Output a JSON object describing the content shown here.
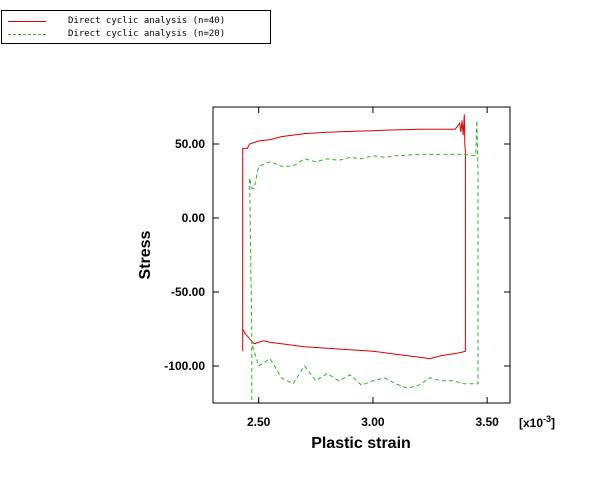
{
  "chart_data": {
    "type": "line",
    "title": "",
    "xlabel": "Plastic strain",
    "ylabel": "Stress",
    "x_multiplier_label": "[x10",
    "x_multiplier_exp": "-3",
    "x_multiplier_close": "]",
    "xlim": [
      2.3,
      3.6
    ],
    "ylim": [
      -125,
      75
    ],
    "xticks": [
      2.5,
      3.0,
      3.5
    ],
    "xtick_labels": [
      "2.50",
      "3.00",
      "3.50"
    ],
    "yticks": [
      50,
      0,
      -50,
      -100
    ],
    "ytick_labels": [
      "50.00",
      "0.00",
      "-50.00",
      "-100.00"
    ],
    "grid": false,
    "legend_position": "top-left-outside",
    "series": [
      {
        "name": "Direct cyclic analysis (n=40)",
        "color": "#dd0000",
        "dash": "solid",
        "points": [
          [
            2.43,
            -90
          ],
          [
            2.43,
            47
          ],
          [
            2.45,
            47
          ],
          [
            2.46,
            50
          ],
          [
            2.5,
            52
          ],
          [
            2.55,
            53
          ],
          [
            2.6,
            55
          ],
          [
            2.65,
            56
          ],
          [
            2.7,
            57
          ],
          [
            2.8,
            58
          ],
          [
            2.9,
            58.5
          ],
          [
            3.0,
            59
          ],
          [
            3.1,
            59.5
          ],
          [
            3.2,
            60
          ],
          [
            3.3,
            60
          ],
          [
            3.36,
            60
          ],
          [
            3.38,
            64
          ],
          [
            3.385,
            58
          ],
          [
            3.39,
            66
          ],
          [
            3.395,
            56
          ],
          [
            3.4,
            70
          ],
          [
            3.402,
            50
          ],
          [
            3.405,
            45
          ],
          [
            3.405,
            -90
          ],
          [
            3.38,
            -91
          ],
          [
            3.3,
            -93
          ],
          [
            3.25,
            -95
          ],
          [
            3.2,
            -94
          ],
          [
            3.1,
            -92
          ],
          [
            3.0,
            -90
          ],
          [
            2.9,
            -89
          ],
          [
            2.8,
            -88
          ],
          [
            2.7,
            -87
          ],
          [
            2.6,
            -85
          ],
          [
            2.55,
            -84
          ],
          [
            2.52,
            -83
          ],
          [
            2.48,
            -85
          ],
          [
            2.44,
            -78
          ],
          [
            2.43,
            -75
          ]
        ]
      },
      {
        "name": "Direct cyclic analysis (n=20)",
        "color": "#22bb22",
        "dash": "dashed",
        "points": [
          [
            2.47,
            -123
          ],
          [
            2.47,
            -80
          ],
          [
            2.46,
            27
          ],
          [
            2.47,
            20
          ],
          [
            2.48,
            20
          ],
          [
            2.5,
            35
          ],
          [
            2.55,
            38
          ],
          [
            2.6,
            35
          ],
          [
            2.65,
            35
          ],
          [
            2.7,
            40
          ],
          [
            2.75,
            38
          ],
          [
            2.8,
            40
          ],
          [
            2.85,
            39
          ],
          [
            2.9,
            41
          ],
          [
            2.95,
            40
          ],
          [
            3.0,
            42
          ],
          [
            3.05,
            41
          ],
          [
            3.1,
            42
          ],
          [
            3.2,
            43
          ],
          [
            3.3,
            43
          ],
          [
            3.4,
            43
          ],
          [
            3.45,
            42
          ],
          [
            3.455,
            66
          ],
          [
            3.46,
            30
          ],
          [
            3.46,
            -112
          ],
          [
            3.4,
            -112
          ],
          [
            3.35,
            -110
          ],
          [
            3.3,
            -110
          ],
          [
            3.25,
            -108
          ],
          [
            3.2,
            -113
          ],
          [
            3.15,
            -115
          ],
          [
            3.1,
            -112
          ],
          [
            3.05,
            -108
          ],
          [
            3.0,
            -110
          ],
          [
            2.95,
            -113
          ],
          [
            2.9,
            -106
          ],
          [
            2.85,
            -110
          ],
          [
            2.8,
            -105
          ],
          [
            2.75,
            -110
          ],
          [
            2.7,
            -100
          ],
          [
            2.65,
            -112
          ],
          [
            2.6,
            -108
          ],
          [
            2.55,
            -95
          ],
          [
            2.5,
            -100
          ],
          [
            2.47,
            -85
          ]
        ]
      }
    ]
  }
}
